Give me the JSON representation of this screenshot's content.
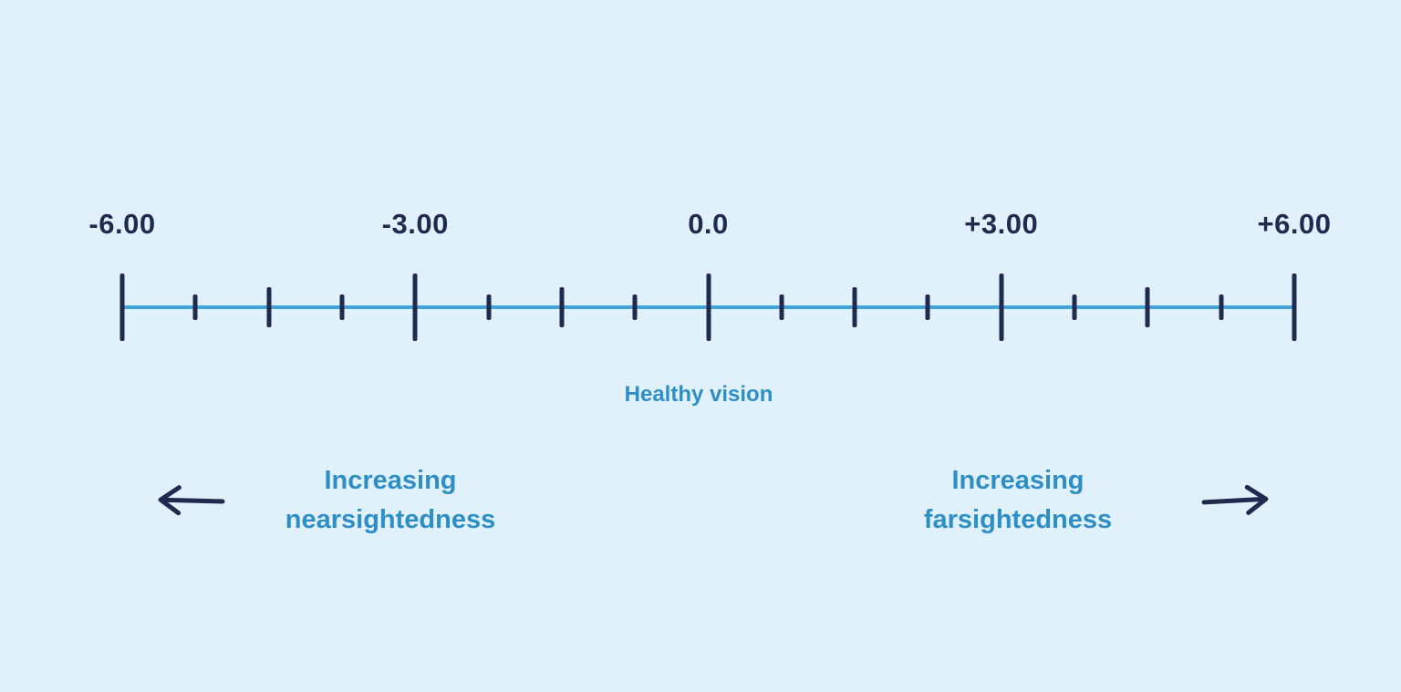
{
  "colors": {
    "background": "#e0f1fb",
    "navy": "#1f2a4e",
    "axis_blue": "#41a3da",
    "text_blue": "#2e8fc6"
  },
  "scale": {
    "min": -6,
    "max": 6,
    "major_labels": [
      {
        "value": -6,
        "label": "-6.00"
      },
      {
        "value": -3,
        "label": "-3.00"
      },
      {
        "value": 0,
        "label": "0.0"
      },
      {
        "value": 3,
        "label": "+3.00"
      },
      {
        "value": 6,
        "label": "+6.00"
      }
    ],
    "ticks": [
      {
        "value": -6,
        "size": "major"
      },
      {
        "value": -5.25,
        "size": "minor"
      },
      {
        "value": -4.5,
        "size": "medium"
      },
      {
        "value": -3.75,
        "size": "minor"
      },
      {
        "value": -3,
        "size": "major"
      },
      {
        "value": -2.25,
        "size": "minor"
      },
      {
        "value": -1.5,
        "size": "medium"
      },
      {
        "value": -0.75,
        "size": "minor"
      },
      {
        "value": 0,
        "size": "major"
      },
      {
        "value": 0.75,
        "size": "minor"
      },
      {
        "value": 1.5,
        "size": "medium"
      },
      {
        "value": 2.25,
        "size": "minor"
      },
      {
        "value": 3,
        "size": "major"
      },
      {
        "value": 3.75,
        "size": "minor"
      },
      {
        "value": 4.5,
        "size": "medium"
      },
      {
        "value": 5.25,
        "size": "minor"
      },
      {
        "value": 6,
        "size": "major"
      }
    ]
  },
  "annotations": {
    "healthy_vision": {
      "label": "Healthy vision",
      "value": 0
    },
    "nearsightedness": {
      "line1": "Increasing",
      "line2": "nearsightedness",
      "arrow_direction": "left"
    },
    "farsightedness": {
      "line1": "Increasing",
      "line2": "farsightedness",
      "arrow_direction": "right"
    }
  }
}
